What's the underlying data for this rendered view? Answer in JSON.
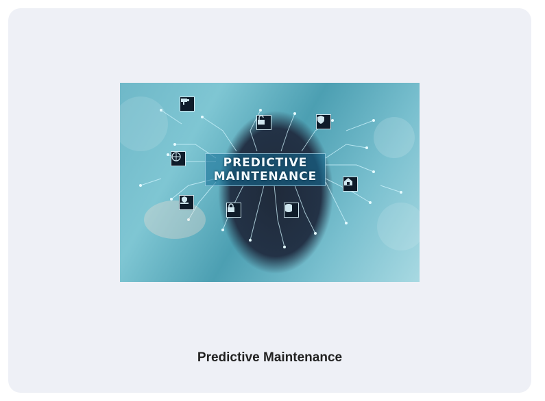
{
  "image": {
    "banner_line1": "PREDICTIVE",
    "banner_line2": "MAINTENANCE",
    "icons": [
      "cctv-camera-icon",
      "unlock-icon",
      "shield-icon",
      "globe-icon",
      "home-lock-icon",
      "hand-shield-icon",
      "padlock-icon",
      "database-icon"
    ]
  },
  "caption": "Predictive Maintenance",
  "colors": {
    "card_background": "#eef0f6",
    "caption_text": "#222222",
    "image_teal": "#6fb8c8"
  }
}
